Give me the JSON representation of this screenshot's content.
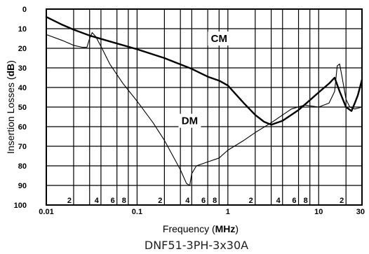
{
  "chart_data": {
    "type": "line",
    "title": "",
    "caption": "DNF51-3PH-3x30A",
    "xlabel_prefix": "Frequency (",
    "xlabel_unit": "MHz",
    "xlabel_suffix": ")",
    "ylabel_prefix": "Insertion Losses (",
    "ylabel_unit": "dB",
    "ylabel_suffix": ")",
    "x_scale": "log",
    "xlim": [
      0.01,
      30
    ],
    "ylim": [
      0,
      100
    ],
    "y_inverted": true,
    "grid": true,
    "y_ticks": [
      0,
      10,
      20,
      30,
      40,
      50,
      60,
      70,
      80,
      90,
      100
    ],
    "y_tick_labels": [
      "0",
      "10",
      "20",
      "30",
      "40",
      "50",
      "60",
      "70",
      "80",
      "90",
      "100"
    ],
    "x_major_ticks": [
      {
        "x": 0.01,
        "label": "0.01"
      },
      {
        "x": 0.1,
        "label": "0.1"
      },
      {
        "x": 1,
        "label": "1"
      },
      {
        "x": 10,
        "label": "10"
      },
      {
        "x": 30,
        "label": "30"
      }
    ],
    "x_minor_labels": [
      {
        "x": 0.02,
        "label": "2"
      },
      {
        "x": 0.04,
        "label": "4"
      },
      {
        "x": 0.06,
        "label": "6"
      },
      {
        "x": 0.08,
        "label": "8"
      },
      {
        "x": 0.2,
        "label": "2"
      },
      {
        "x": 0.4,
        "label": "4"
      },
      {
        "x": 0.6,
        "label": "6"
      },
      {
        "x": 0.8,
        "label": "8"
      },
      {
        "x": 2,
        "label": "2"
      },
      {
        "x": 4,
        "label": "4"
      },
      {
        "x": 6,
        "label": "6"
      },
      {
        "x": 8,
        "label": "8"
      },
      {
        "x": 20,
        "label": "2"
      }
    ],
    "x_gridlines": [
      0.02,
      0.03,
      0.04,
      0.06,
      0.08,
      0.1,
      0.2,
      0.3,
      0.4,
      0.6,
      0.8,
      1,
      2,
      3,
      4,
      6,
      8,
      10,
      20,
      30
    ],
    "series": [
      {
        "name": "CM",
        "stroke": "heavy",
        "x": [
          0.01,
          0.015,
          0.02,
          0.03,
          0.05,
          0.1,
          0.2,
          0.4,
          0.6,
          0.8,
          1.0,
          1.5,
          2.0,
          2.5,
          3.0,
          4.0,
          6.0,
          8.0,
          10.0,
          13.0,
          15.0,
          17.0,
          20.0,
          23.0,
          25.0,
          27.0,
          30.0
        ],
        "y": [
          4,
          8,
          10.5,
          13.5,
          16.5,
          20.5,
          25,
          30.5,
          34.5,
          36.5,
          39,
          48,
          54,
          57.5,
          59,
          57,
          51.5,
          46.5,
          42.5,
          38,
          35,
          42,
          50,
          52,
          48,
          44,
          36
        ]
      },
      {
        "name": "DM",
        "stroke": "thin",
        "x": [
          0.01,
          0.015,
          0.02,
          0.025,
          0.028,
          0.03,
          0.032,
          0.035,
          0.04,
          0.05,
          0.07,
          0.1,
          0.15,
          0.2,
          0.3,
          0.35,
          0.38,
          0.4,
          0.45,
          0.6,
          0.8,
          1.0,
          1.5,
          2.0,
          3.0,
          5.0,
          7.0,
          10.0,
          13.0,
          15.0,
          16.0,
          17.0,
          18.0,
          20.0,
          22.0,
          25.0,
          30.0
        ],
        "y": [
          13,
          16,
          18.5,
          19.5,
          19.5,
          15,
          12,
          14,
          19,
          28,
          38,
          47,
          58,
          67,
          82,
          89,
          90,
          84,
          80,
          78,
          76,
          72,
          67,
          63,
          58,
          51,
          49,
          50,
          48,
          42,
          29,
          28,
          34,
          46,
          50,
          51,
          50
        ]
      }
    ],
    "annotations": [
      {
        "text": "CM",
        "x": 0.8,
        "y": 15
      },
      {
        "text": "DM",
        "x": 0.38,
        "y": 57
      }
    ]
  }
}
